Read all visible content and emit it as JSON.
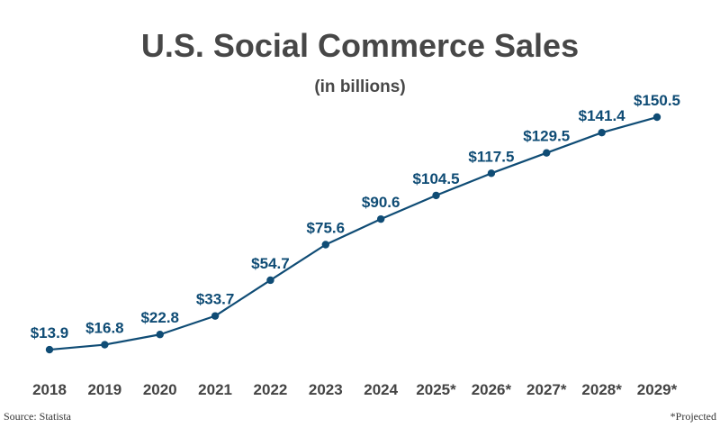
{
  "chart_data": {
    "type": "line",
    "title": "U.S. Social Commerce Sales",
    "subtitle": "(in billions)",
    "categories": [
      "2018",
      "2019",
      "2020",
      "2021",
      "2022",
      "2023",
      "2024",
      "2025*",
      "2026*",
      "2027*",
      "2028*",
      "2029*"
    ],
    "values": [
      13.9,
      16.8,
      22.8,
      33.7,
      54.7,
      75.6,
      90.6,
      104.5,
      117.5,
      129.5,
      141.4,
      150.5
    ],
    "value_prefix": "$",
    "xlabel": "",
    "ylabel": "",
    "grid": false,
    "y_axis_visible": false,
    "data_labels": true,
    "colors": {
      "line": "#0f4c75",
      "label": "#0f4c75",
      "axis_text": "#444444",
      "title": "#474747"
    }
  },
  "footer": {
    "source": "Source: Statista",
    "note": "*Projected"
  }
}
